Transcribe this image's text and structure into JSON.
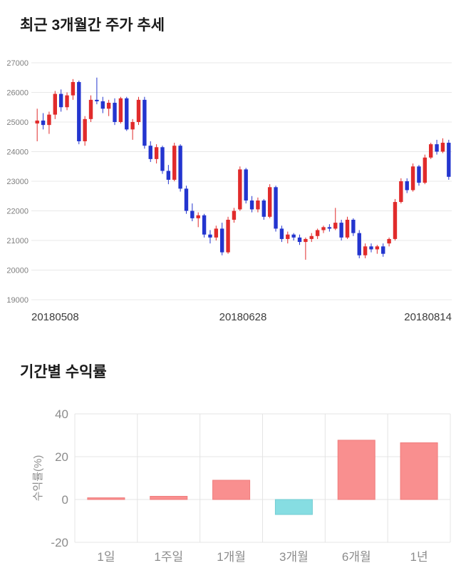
{
  "page": {
    "background": "#ffffff"
  },
  "chart_data": [
    {
      "type": "candlestick",
      "title": "최근 3개월간 주가 추세",
      "ylim": [
        19000,
        27000
      ],
      "yticks": [
        27000,
        26000,
        25000,
        24000,
        23000,
        22000,
        21000,
        20000,
        19000
      ],
      "x_labels": [
        "20180508",
        "20180628",
        "20180814"
      ],
      "colors": {
        "up": "#e12b2b",
        "down": "#2335cf",
        "grid": "#e8e8e8",
        "axis_text": "#7f7f7f",
        "date_text": "#3c3c3c"
      },
      "candles": [
        [
          24950,
          25450,
          24350,
          25050
        ],
        [
          25050,
          25300,
          24750,
          24900
        ],
        [
          24900,
          25350,
          24600,
          25250
        ],
        [
          25250,
          26050,
          25100,
          25950
        ],
        [
          25950,
          26100,
          25350,
          25500
        ],
        [
          25500,
          26000,
          25400,
          25900
        ],
        [
          25900,
          26450,
          25750,
          26350
        ],
        [
          26350,
          26400,
          24250,
          24350
        ],
        [
          24350,
          25200,
          24200,
          25100
        ],
        [
          25100,
          25900,
          25000,
          25750
        ],
        [
          25750,
          26500,
          25600,
          25700
        ],
        [
          25700,
          25850,
          25300,
          25450
        ],
        [
          25450,
          25750,
          25200,
          25650
        ],
        [
          25650,
          25800,
          24900,
          25000
        ],
        [
          25000,
          25850,
          24950,
          25800
        ],
        [
          25800,
          25850,
          24700,
          24750
        ],
        [
          24750,
          25100,
          24400,
          25000
        ],
        [
          25000,
          25850,
          24900,
          25750
        ],
        [
          25750,
          25850,
          24100,
          24200
        ],
        [
          24200,
          24350,
          23650,
          23750
        ],
        [
          23750,
          24250,
          23600,
          24150
        ],
        [
          24150,
          24200,
          23250,
          23350
        ],
        [
          23350,
          23550,
          22900,
          23050
        ],
        [
          23050,
          24300,
          23000,
          24200
        ],
        [
          24200,
          24250,
          22650,
          22750
        ],
        [
          22750,
          22850,
          21900,
          22000
        ],
        [
          22000,
          22250,
          21650,
          21750
        ],
        [
          21750,
          21950,
          21450,
          21850
        ],
        [
          21850,
          21900,
          21100,
          21200
        ],
        [
          21200,
          21350,
          20900,
          21100
        ],
        [
          21100,
          21500,
          21000,
          21400
        ],
        [
          21400,
          21600,
          20500,
          20600
        ],
        [
          20600,
          21800,
          20550,
          21700
        ],
        [
          21700,
          22100,
          21600,
          22000
        ],
        [
          22050,
          23500,
          22000,
          23400
        ],
        [
          23400,
          23450,
          22250,
          22350
        ],
        [
          22350,
          22500,
          21950,
          22050
        ],
        [
          22050,
          22450,
          21950,
          22350
        ],
        [
          22350,
          22400,
          21700,
          21800
        ],
        [
          21800,
          22900,
          21750,
          22800
        ],
        [
          22800,
          22850,
          21300,
          21400
        ],
        [
          21400,
          21500,
          20950,
          21050
        ],
        [
          21050,
          21300,
          20900,
          21200
        ],
        [
          21200,
          21250,
          21000,
          21100
        ],
        [
          21100,
          21200,
          20850,
          20950
        ],
        [
          20950,
          21100,
          20350,
          21050
        ],
        [
          21050,
          21250,
          20950,
          21150
        ],
        [
          21150,
          21400,
          21050,
          21350
        ],
        [
          21350,
          21500,
          21250,
          21450
        ],
        [
          21450,
          21550,
          21300,
          21400
        ],
        [
          21400,
          22100,
          21350,
          21600
        ],
        [
          21600,
          21700,
          21000,
          21100
        ],
        [
          21100,
          21800,
          21050,
          21700
        ],
        [
          21700,
          21750,
          21150,
          21250
        ],
        [
          21250,
          21350,
          20400,
          20500
        ],
        [
          20500,
          20900,
          20400,
          20800
        ],
        [
          20800,
          20900,
          20600,
          20700
        ],
        [
          20700,
          20850,
          20550,
          20800
        ],
        [
          20800,
          20900,
          20450,
          20550
        ],
        [
          20900,
          21100,
          20800,
          21050
        ],
        [
          21050,
          22400,
          21000,
          22300
        ],
        [
          22300,
          23100,
          22250,
          23000
        ],
        [
          23000,
          23100,
          22600,
          22700
        ],
        [
          22700,
          23600,
          22650,
          23500
        ],
        [
          23500,
          23550,
          22850,
          22950
        ],
        [
          22950,
          23900,
          22900,
          23800
        ],
        [
          23800,
          24300,
          23750,
          24250
        ],
        [
          24250,
          24400,
          23900,
          24000
        ],
        [
          24000,
          24450,
          23950,
          24300
        ],
        [
          24300,
          24400,
          23050,
          23150
        ]
      ]
    },
    {
      "type": "bar",
      "title": "기간별 수익률",
      "ylabel": "수익률(%)",
      "categories": [
        "1일",
        "1주일",
        "1개월",
        "3개월",
        "6개월",
        "1년"
      ],
      "values": [
        0.8,
        1.5,
        9,
        -7,
        27.7,
        26.5
      ],
      "yticks": [
        40,
        20,
        0,
        -20
      ],
      "ylim": [
        -20,
        40
      ],
      "colors": {
        "positive": "#f98f8f",
        "positive_border": "#ef7d7d",
        "negative": "#86dde2",
        "negative_border": "#72ccd2",
        "grid": "#e4e4e4",
        "axis_text": "#8c8c8c"
      }
    }
  ]
}
